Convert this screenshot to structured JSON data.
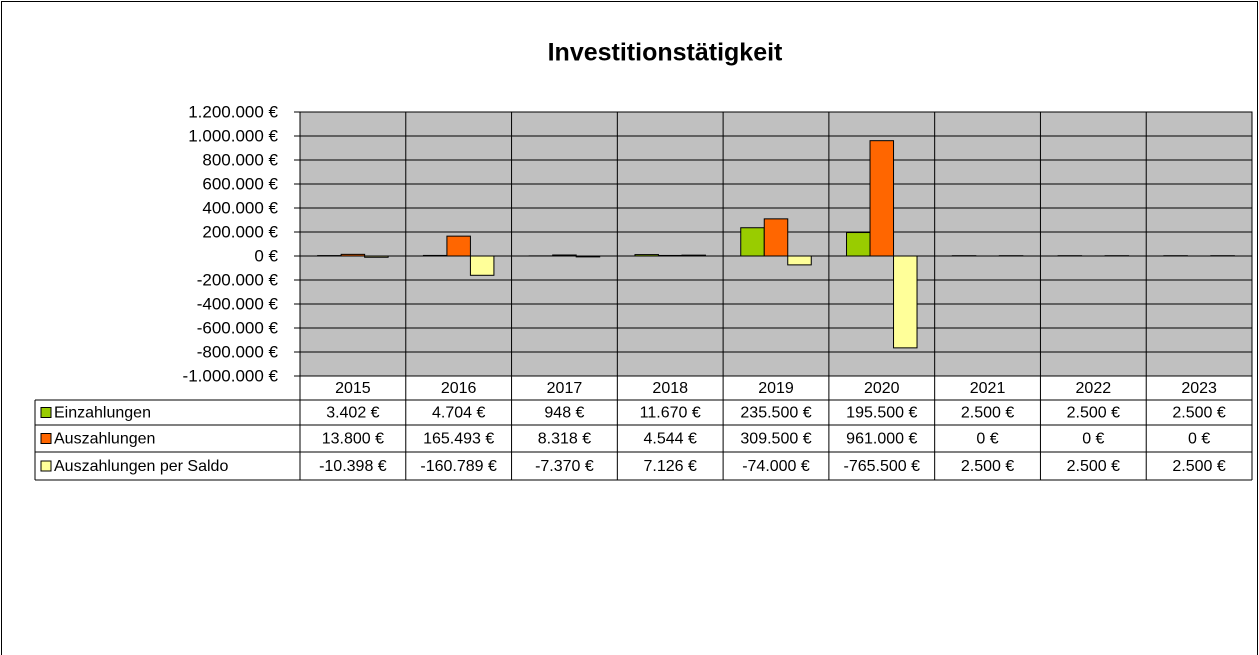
{
  "chart_data": {
    "type": "bar",
    "title": "Investitionstätigkeit",
    "categories": [
      "2015",
      "2016",
      "2017",
      "2018",
      "2019",
      "2020",
      "2021",
      "2022",
      "2023"
    ],
    "series": [
      {
        "name": "Einzahlungen",
        "color": "#99cc00",
        "values": [
          3402,
          4704,
          948,
          11670,
          235500,
          195500,
          2500,
          2500,
          2500
        ],
        "value_labels": [
          "3.402 €",
          "4.704 €",
          "948 €",
          "11.670 €",
          "235.500 €",
          "195.500 €",
          "2.500 €",
          "2.500 €",
          "2.500 €"
        ]
      },
      {
        "name": "Auszahlungen",
        "color": "#ff6600",
        "values": [
          13800,
          165493,
          8318,
          4544,
          309500,
          961000,
          0,
          0,
          0
        ],
        "value_labels": [
          "13.800 €",
          "165.493 €",
          "8.318 €",
          "4.544 €",
          "309.500 €",
          "961.000 €",
          "0 €",
          "0 €",
          "0 €"
        ]
      },
      {
        "name": "Auszahlungen per Saldo",
        "color": "#ffff99",
        "values": [
          -10398,
          -160789,
          -7370,
          7126,
          -74000,
          -765500,
          2500,
          2500,
          2500
        ],
        "value_labels": [
          "-10.398 €",
          "-160.789 €",
          "-7.370 €",
          "7.126 €",
          "-74.000 €",
          "-765.500 €",
          "2.500 €",
          "2.500 €",
          "2.500 €"
        ]
      }
    ],
    "ylim": [
      -1000000,
      1200000
    ],
    "yticks": [
      {
        "value": -1000000,
        "label": "-1.000.000 €"
      },
      {
        "value": -800000,
        "label": "-800.000 €"
      },
      {
        "value": -600000,
        "label": "-600.000 €"
      },
      {
        "value": -400000,
        "label": "-400.000 €"
      },
      {
        "value": -200000,
        "label": "-200.000 €"
      },
      {
        "value": 0,
        "label": "0 €"
      },
      {
        "value": 200000,
        "label": "200.000 €"
      },
      {
        "value": 400000,
        "label": "400.000 €"
      },
      {
        "value": 600000,
        "label": "600.000 €"
      },
      {
        "value": 800000,
        "label": "800.000 €"
      },
      {
        "value": 1000000,
        "label": "1.000.000 €"
      },
      {
        "value": 1200000,
        "label": "1.200.000 €"
      }
    ],
    "grid": true,
    "legend": "table"
  }
}
